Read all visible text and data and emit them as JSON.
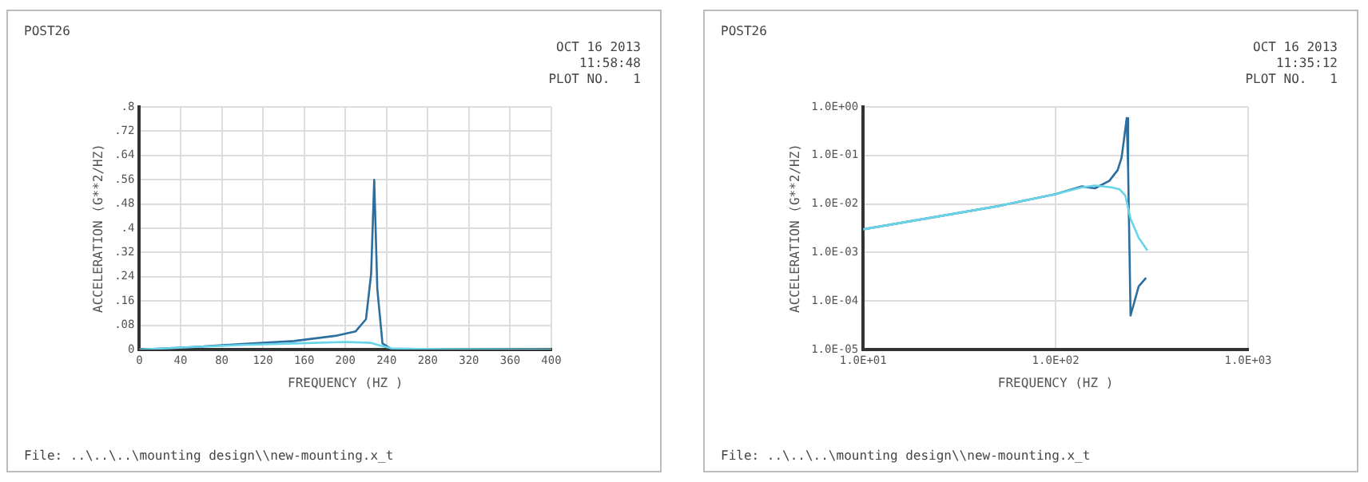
{
  "chart_data": [
    {
      "type": "line",
      "xlabel": "FREQUENCY (HZ )",
      "ylabel": "ACCELERATION (G**2/HZ)",
      "grid": true,
      "marker": "none",
      "line_style": "solid",
      "annotations": [
        "POST26",
        "OCT 16 2013",
        "11:58:48",
        "PLOT NO.   1",
        "File: ..\\..\\..\\mounting design\\\\new-mounting.x_t"
      ],
      "xlim": [
        0,
        400
      ],
      "xticks": [
        0,
        40,
        80,
        120,
        160,
        200,
        240,
        280,
        320,
        360,
        400
      ],
      "ylim": [
        0,
        0.8
      ],
      "yticks": [
        {
          "value": 0,
          "label": "0"
        },
        {
          "value": 0.08,
          "label": ".08"
        },
        {
          "value": 0.16,
          "label": ".16"
        },
        {
          "value": 0.24,
          "label": ".24"
        },
        {
          "value": 0.32,
          "label": ".32"
        },
        {
          "value": 0.4,
          "label": ".4"
        },
        {
          "value": 0.48,
          "label": ".48"
        },
        {
          "value": 0.56,
          "label": ".56"
        },
        {
          "value": 0.64,
          "label": ".64"
        },
        {
          "value": 0.72,
          "label": ".72"
        },
        {
          "value": 0.8,
          "label": ".8"
        }
      ],
      "series": [
        {
          "color": "#67d4e8",
          "x": [
            0,
            50,
            100,
            150,
            200,
            225,
            235,
            245,
            270,
            300,
            400
          ],
          "values": [
            0,
            0.008,
            0.015,
            0.02,
            0.025,
            0.022,
            0.012,
            0.004,
            0.002,
            0.001,
            0
          ]
        },
        {
          "color": "#2c6e9e",
          "x": [
            0,
            50,
            100,
            150,
            190,
            210,
            220,
            225,
            228,
            231,
            236,
            245,
            300
          ],
          "values": [
            0,
            0.008,
            0.018,
            0.028,
            0.045,
            0.06,
            0.1,
            0.25,
            0.56,
            0.2,
            0.02,
            0.001,
            0
          ]
        }
      ]
    },
    {
      "type": "line",
      "xlabel": "FREQUENCY (HZ )",
      "ylabel": "ACCELERATION (G**2/HZ)",
      "grid": true,
      "marker": "none",
      "line_style": "solid",
      "log": "xy",
      "annotations": [
        "POST26",
        "OCT 16 2013",
        "11:35:12",
        "PLOT NO.   1",
        "File: ..\\..\\..\\mounting design\\\\new-mounting.x_t"
      ],
      "xlim": [
        10,
        1000
      ],
      "xticks": [
        {
          "value": 10,
          "label": "1.0E+01"
        },
        {
          "value": 100,
          "label": "1.0E+02"
        },
        {
          "value": 1000,
          "label": "1.0E+03"
        }
      ],
      "ylim": [
        1e-05,
        1
      ],
      "yticks": [
        {
          "value": 1e-05,
          "label": "1.0E-05"
        },
        {
          "value": 0.0001,
          "label": "1.0E-04"
        },
        {
          "value": 0.001,
          "label": "1.0E-03"
        },
        {
          "value": 0.01,
          "label": "1.0E-02"
        },
        {
          "value": 0.1,
          "label": "1.0E-01"
        },
        {
          "value": 1,
          "label": "1.0E+00"
        }
      ],
      "series": [
        {
          "color": "#67d4e8",
          "x": [
            10,
            50,
            100,
            137,
            160,
            195,
            215,
            230,
            245,
            270,
            300
          ],
          "values": [
            0.003,
            0.009,
            0.016,
            0.022,
            0.024,
            0.022,
            0.02,
            0.015,
            0.005,
            0.002,
            0.0011
          ]
        },
        {
          "color": "#2c6e9e",
          "x": [
            10,
            50,
            100,
            137,
            160,
            190,
            210,
            220,
            226,
            234,
            238,
            242,
            245,
            270,
            295
          ],
          "values": [
            0.003,
            0.009,
            0.016,
            0.023,
            0.021,
            0.03,
            0.05,
            0.09,
            0.2,
            0.59,
            0.05,
            0.001,
            5e-05,
            0.0002,
            0.0003
          ]
        }
      ]
    }
  ]
}
